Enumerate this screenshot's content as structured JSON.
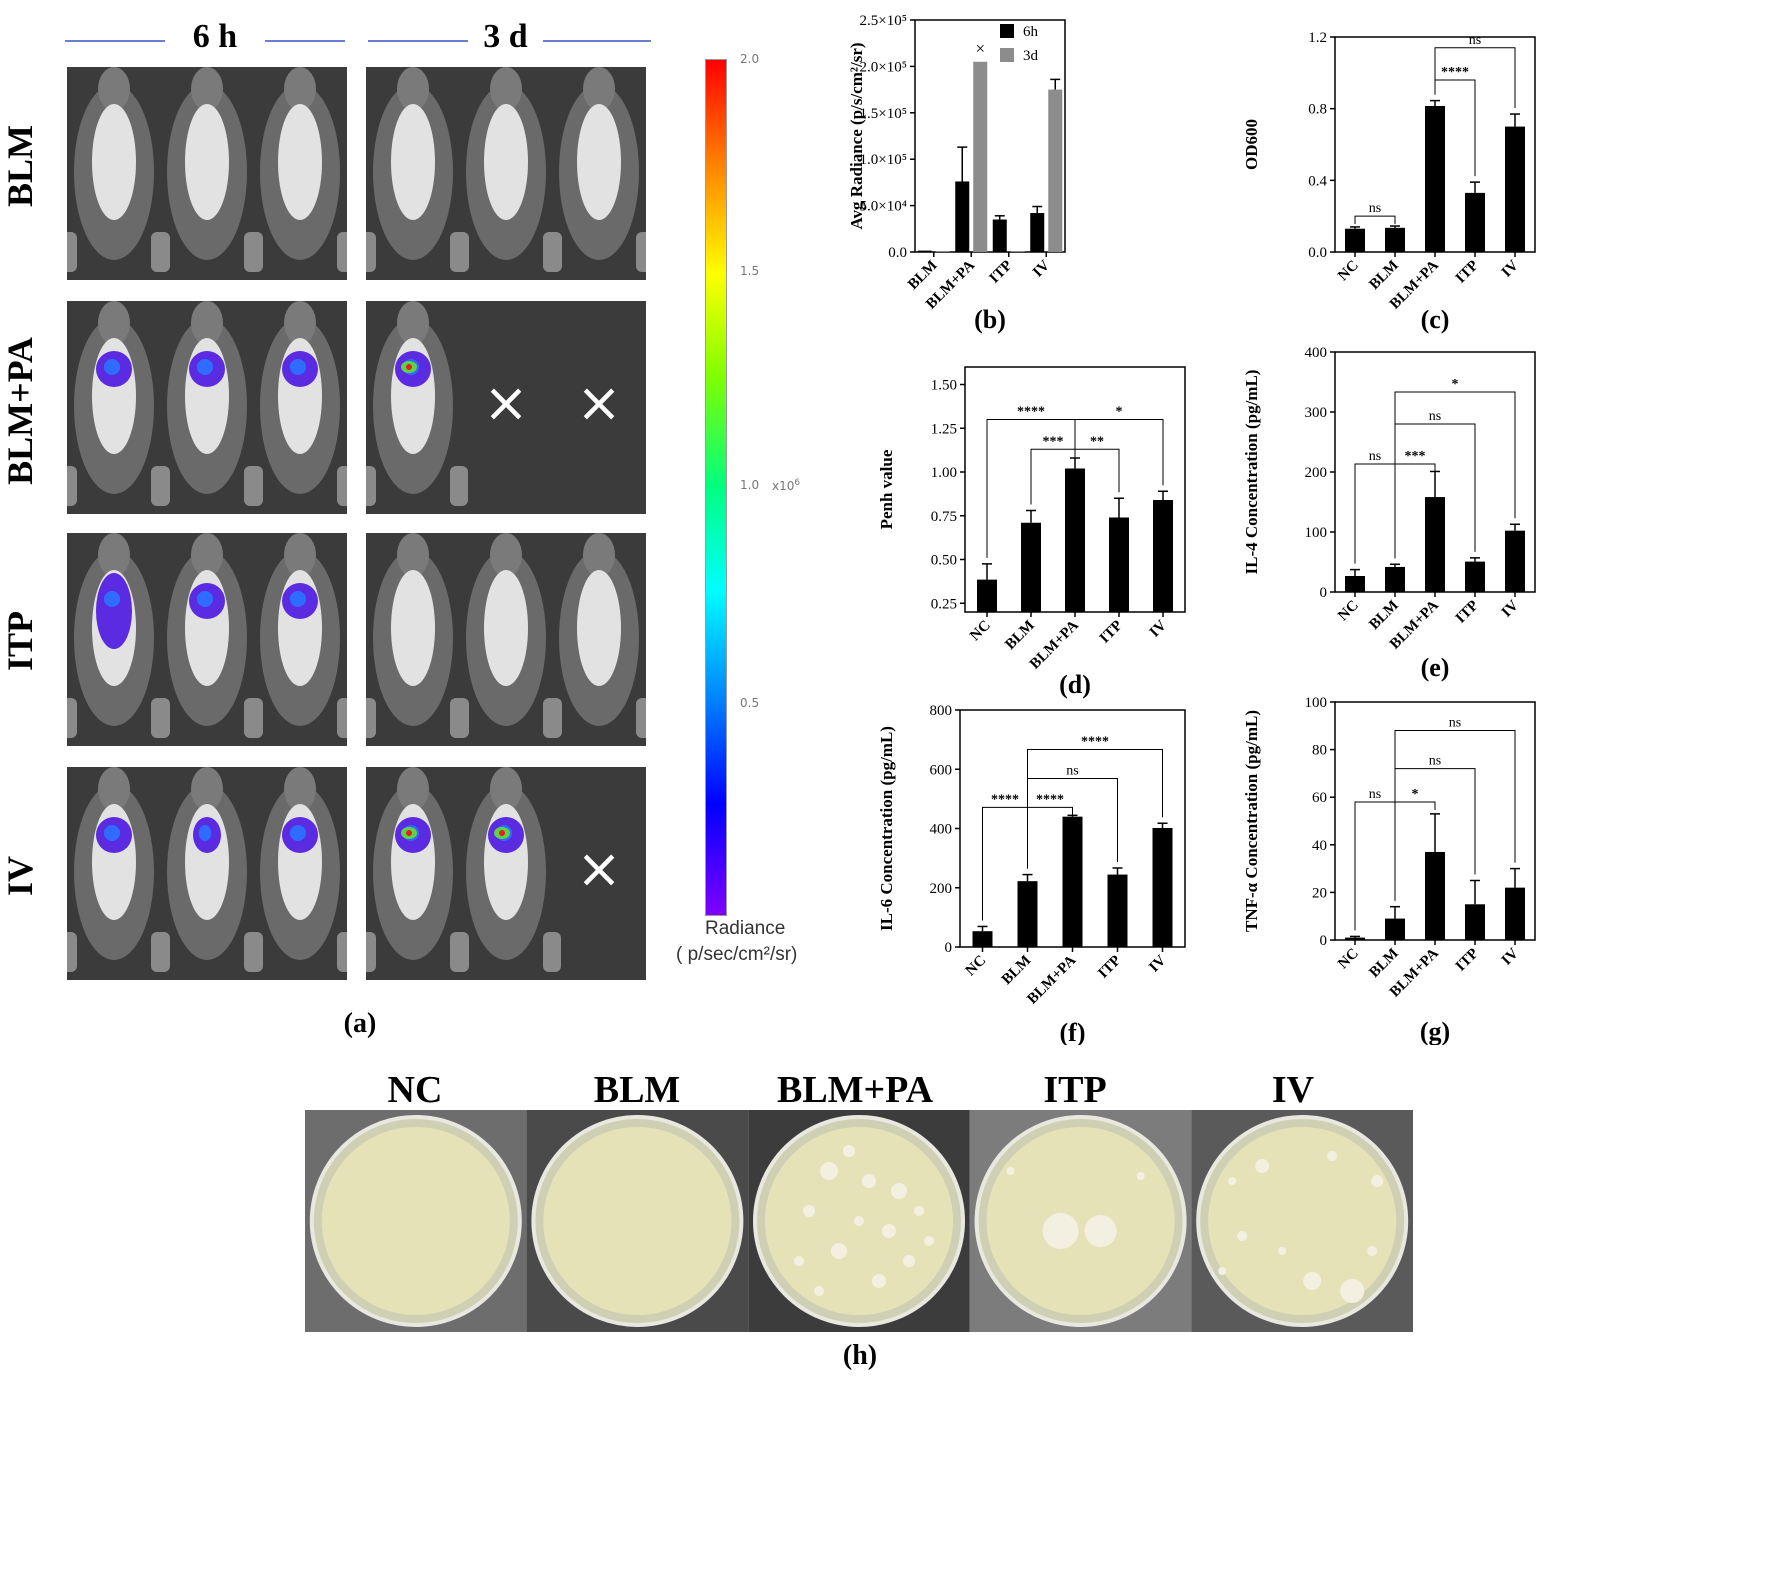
{
  "panel_a": {
    "col_6h": "6 h",
    "col_3d": "3 d",
    "rows": [
      "BLM",
      "BLM+PA",
      "ITP",
      "IV"
    ],
    "label": "(a)",
    "colorbar": {
      "ticks": [
        "2.0",
        "1.5",
        "1.0",
        "0.5"
      ],
      "exponent": "x10",
      "exponent_sup": "6",
      "title": "Radiance",
      "unit": "( p/sec/cm²/sr)"
    },
    "dead_mark": "×"
  },
  "panel_h": {
    "labels": [
      "NC",
      "BLM",
      "BLM+PA",
      "ITP",
      "IV"
    ],
    "label": "(h)"
  },
  "chart_data": [
    {
      "id": "b",
      "type": "bar",
      "panel_label": "(b)",
      "categories": [
        "BLM",
        "BLM+PA",
        "ITP",
        "IV"
      ],
      "ylabel": "Avg Radiance (p/s/cm²/sr)",
      "ylim": [
        0,
        250000
      ],
      "yticks": [
        "0.0",
        "5.0×10⁴",
        "1.0×10⁵",
        "1.5×10⁵",
        "2.0×10⁵",
        "2.5×10⁵"
      ],
      "series": [
        {
          "name": "6h",
          "color": "#000000",
          "values": [
            1500,
            76000,
            35000,
            42000
          ],
          "errors": [
            0,
            37000,
            4000,
            7000
          ]
        },
        {
          "name": "3d",
          "color": "#8c8c8c",
          "values": [
            1000,
            205000,
            1000,
            175000
          ],
          "errors": [
            0,
            0,
            0,
            11000
          ]
        }
      ],
      "annotation": "×",
      "legend": "top-right"
    },
    {
      "id": "c",
      "type": "bar",
      "panel_label": "(c)",
      "categories": [
        "NC",
        "BLM",
        "BLM+PA",
        "ITP",
        "IV"
      ],
      "ylabel": "OD600",
      "ylim": [
        0,
        1.2
      ],
      "yticks": [
        "0.0",
        "0.4",
        "0.8",
        "1.2"
      ],
      "values": [
        0.13,
        0.135,
        0.815,
        0.33,
        0.7
      ],
      "errors": [
        0.01,
        0.01,
        0.03,
        0.06,
        0.07
      ],
      "brackets": [
        {
          "from": 0,
          "to": 1,
          "text": "ns",
          "level": 0.2
        },
        {
          "from": 2,
          "to": 3,
          "text": "****",
          "level": 0.96
        },
        {
          "from": 2,
          "to": 4,
          "text": "ns",
          "level": 1.14
        }
      ]
    },
    {
      "id": "d",
      "type": "bar",
      "panel_label": "(d)",
      "categories": [
        "NC",
        "BLM",
        "BLM+PA",
        "ITP",
        "IV"
      ],
      "ylabel": "Penh value",
      "ylim": [
        0.2,
        1.6
      ],
      "yticks": [
        "0.25",
        "0.50",
        "0.75",
        "1.00",
        "1.25",
        "1.50"
      ],
      "values": [
        0.385,
        0.71,
        1.02,
        0.74,
        0.84
      ],
      "errors": [
        0.09,
        0.07,
        0.06,
        0.11,
        0.05
      ],
      "brackets": [
        {
          "from": 0,
          "to": 2,
          "text": "****",
          "level": 1.3
        },
        {
          "from": 1,
          "to": 2,
          "text": "***",
          "level": 1.13
        },
        {
          "from": 2,
          "to": 3,
          "text": "**",
          "level": 1.13
        },
        {
          "from": 2,
          "to": 4,
          "text": "*",
          "level": 1.3
        }
      ]
    },
    {
      "id": "e",
      "type": "bar",
      "panel_label": "(e)",
      "categories": [
        "NC",
        "BLM",
        "BLM+PA",
        "ITP",
        "IV"
      ],
      "ylabel": "IL-4 Concentration (pg/mL)",
      "ylim": [
        0,
        450
      ],
      "yticks": [
        "0",
        "100",
        "200",
        "300",
        "400"
      ],
      "values": [
        30,
        47,
        178,
        57,
        115
      ],
      "errors": [
        12,
        5,
        48,
        7,
        12
      ],
      "brackets": [
        {
          "from": 0,
          "to": 1,
          "text": "ns",
          "level": 240
        },
        {
          "from": 1,
          "to": 2,
          "text": "***",
          "level": 240
        },
        {
          "from": 1,
          "to": 3,
          "text": "ns",
          "level": 315
        },
        {
          "from": 1,
          "to": 4,
          "text": "*",
          "level": 375
        }
      ]
    },
    {
      "id": "f",
      "type": "bar",
      "panel_label": "(f)",
      "categories": [
        "NC",
        "BLM",
        "BLM+PA",
        "ITP",
        "IV"
      ],
      "ylabel": "IL-6 Concentration (pg/mL)",
      "ylim": [
        0,
        900
      ],
      "yticks": [
        "0",
        "200",
        "400",
        "600",
        "800"
      ],
      "values": [
        60,
        250,
        495,
        275,
        452
      ],
      "errors": [
        18,
        25,
        5,
        25,
        18
      ],
      "brackets": [
        {
          "from": 0,
          "to": 1,
          "text": "****",
          "level": 530
        },
        {
          "from": 1,
          "to": 2,
          "text": "****",
          "level": 530
        },
        {
          "from": 1,
          "to": 3,
          "text": "ns",
          "level": 640
        },
        {
          "from": 1,
          "to": 4,
          "text": "****",
          "level": 750
        }
      ]
    },
    {
      "id": "g",
      "type": "bar",
      "panel_label": "(g)",
      "categories": [
        "NC",
        "BLM",
        "BLM+PA",
        "ITP",
        "IV"
      ],
      "ylabel": "TNF-α Concentration (pg/mL)",
      "ylim": [
        0,
        100
      ],
      "yticks": [
        "0",
        "20",
        "40",
        "60",
        "80",
        "100"
      ],
      "values": [
        1,
        9,
        37,
        15,
        22
      ],
      "errors": [
        0.5,
        5,
        16,
        10,
        8
      ],
      "brackets": [
        {
          "from": 0,
          "to": 1,
          "text": "ns",
          "level": 58
        },
        {
          "from": 1,
          "to": 2,
          "text": "*",
          "level": 58
        },
        {
          "from": 1,
          "to": 3,
          "text": "ns",
          "level": 72
        },
        {
          "from": 1,
          "to": 4,
          "text": "ns",
          "level": 88
        }
      ]
    }
  ]
}
